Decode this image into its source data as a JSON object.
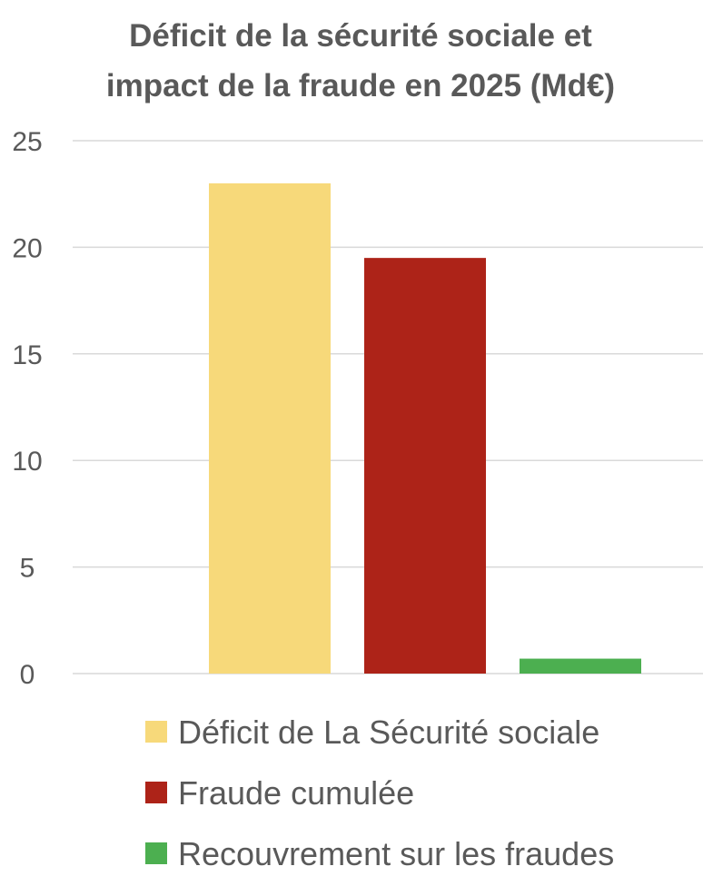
{
  "chart_data": {
    "type": "bar",
    "title_lines": [
      "Déficit de la sécurité sociale et",
      "impact de la fraude en 2025 (Md€)"
    ],
    "xlabel": "",
    "ylabel": "",
    "ylim": [
      0,
      25
    ],
    "yticks": [
      0,
      5,
      10,
      15,
      20,
      25
    ],
    "grid": true,
    "legend_position": "bottom",
    "series": [
      {
        "name": "Déficit de La Sécurité sociale",
        "value": 23,
        "color": "#F7D97A"
      },
      {
        "name": "Fraude cumulée",
        "value": 19.5,
        "color": "#AD2318"
      },
      {
        "name": "Recouvrement sur les fraudes",
        "value": 0.7,
        "color": "#4CAF50"
      }
    ]
  }
}
